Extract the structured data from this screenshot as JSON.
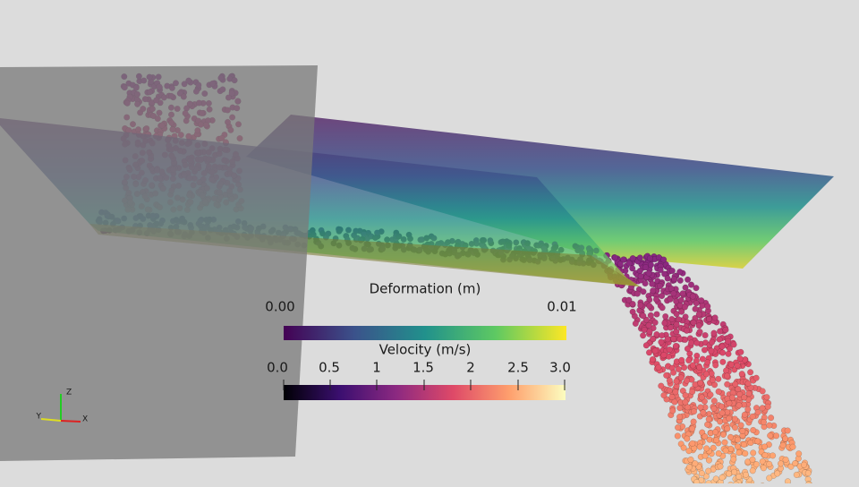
{
  "scene": {
    "deformation_legend": {
      "title": "Deformation (m)",
      "ticks": [
        "0.00",
        "0.01"
      ]
    },
    "velocity_legend": {
      "title": "Velocity (m/s)",
      "ticks": [
        "0.0",
        "0.5",
        "1",
        "1.5",
        "2",
        "2.5",
        "3.0"
      ]
    },
    "axes": {
      "x": "X",
      "y": "Y",
      "z": "Z"
    }
  }
}
